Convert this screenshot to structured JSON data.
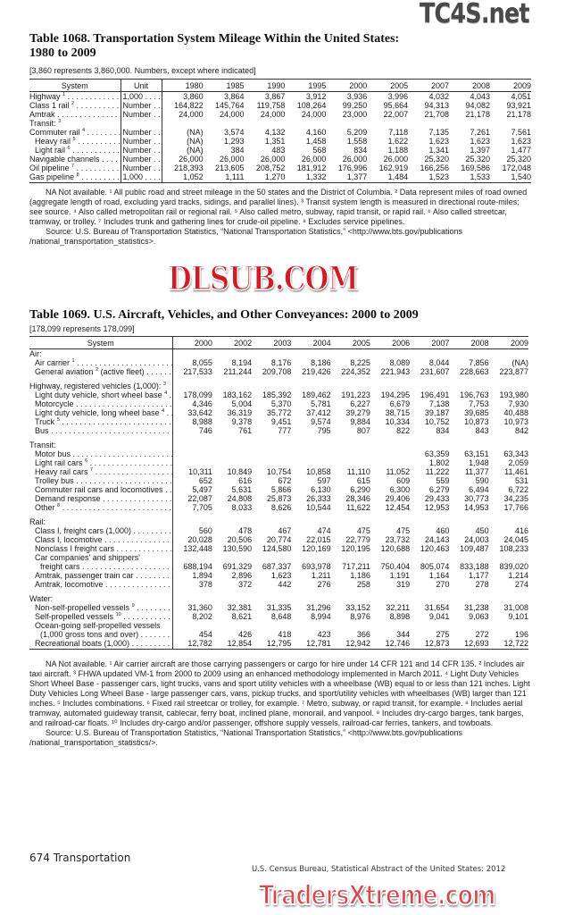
{
  "table1068": {
    "title_line1": "Table 1068. Transportation System Mileage Within the United States:",
    "title_line2": "1980 to 2009",
    "subtitle": "[3,860 represents 3,860,000. Numbers, except where indicated]",
    "headers": [
      "System",
      "Unit",
      "1980",
      "1985",
      "1990",
      "1995",
      "2000",
      "2005",
      "2007",
      "2008",
      "2009"
    ],
    "rows": [
      {
        "label": "Highway",
        "note": "1",
        "indent": 0,
        "unit": "1,000",
        "values": [
          "3,860",
          "3,864",
          "3,867",
          "3,912",
          "3,936",
          "3,996",
          "4,032",
          "4,043",
          "4,051"
        ]
      },
      {
        "label": "Class 1 rail",
        "note": "2",
        "indent": 0,
        "unit": "Number",
        "values": [
          "164,822",
          "145,764",
          "119,758",
          "108,264",
          "99,250",
          "95,664",
          "94,313",
          "94,082",
          "93,921"
        ]
      },
      {
        "label": "Amtrak",
        "note": "",
        "indent": 0,
        "unit": "Number",
        "values": [
          "24,000",
          "24,000",
          "24,000",
          "24,000",
          "23,000",
          "22,007",
          "21,708",
          "21,178",
          "21,178"
        ]
      },
      {
        "label": "Transit:",
        "note": "3",
        "indent": 0,
        "unit": "",
        "values": [],
        "heading": true
      },
      {
        "label": "Commuter rail",
        "note": "4",
        "indent": 0,
        "unit": "Number",
        "values": [
          "(NA)",
          "3,574",
          "4,132",
          "4,160",
          "5,209",
          "7,118",
          "7,135",
          "7,261",
          "7,561"
        ]
      },
      {
        "label": "Heavy rail",
        "note": "5",
        "indent": 1,
        "unit": "Number",
        "values": [
          "(NA)",
          "1,293",
          "1,351",
          "1,458",
          "1,558",
          "1,622",
          "1,623",
          "1,623",
          "1,623"
        ]
      },
      {
        "label": "Light rail",
        "note": "6",
        "indent": 1,
        "unit": "Number",
        "values": [
          "(NA)",
          "384",
          "483",
          "568",
          "834",
          "1,188",
          "1,341",
          "1,397",
          "1,477"
        ]
      },
      {
        "label": "Navigable channels",
        "note": "",
        "indent": 0,
        "unit": "Number",
        "values": [
          "26,000",
          "26,000",
          "26,000",
          "26,000",
          "26,000",
          "26,000",
          "25,320",
          "25,320",
          "25,320"
        ]
      },
      {
        "label": "Oil pipeline",
        "note": "7",
        "indent": 0,
        "unit": "Number",
        "values": [
          "218,393",
          "213,605",
          "208,752",
          "181,912",
          "176,996",
          "162,919",
          "166,256",
          "169,586",
          "172,048"
        ]
      },
      {
        "label": "Gas pipeline",
        "note": "8",
        "indent": 0,
        "unit": "1,000",
        "values": [
          "1,052",
          "1,111",
          "1,270",
          "1,332",
          "1,377",
          "1,484",
          "1,523",
          "1,533",
          "1,540"
        ]
      }
    ],
    "notes": "NA Not available. ¹ All public road and street mileage in the 50 states and the District of Columbia. ² Data represent miles of road owned (aggregate length of road, excluding yard tracks, sidings, and parallel lines). ³ Transit system length is measured in directional route-miles; see source. ⁴ Also called metropolitan rail or regional rail. ⁵ Also called metro, subway, rapid transit, or rapid rail. ⁶ Also called streetcar, tramway, or trolley. ⁷ Includes trunk and gathering lines for crude-oil pipeline. ⁸ Excludes service pipelines.",
    "source": "Source: U.S. Bureau of Transportation Statistics, “National Transportation Statistics,” <http://www.bts.gov/publications /national_transportation_statistics>."
  },
  "table1069": {
    "title": "Table 1069. U.S. Aircraft, Vehicles, and Other Conveyances: 2000 to 2009",
    "subtitle": "[178,099 represents 178,099]",
    "headers": [
      "System",
      "2000",
      "2002",
      "2003",
      "2004",
      "2005",
      "2006",
      "2007",
      "2008",
      "2009"
    ],
    "rows": [
      {
        "label": "Air:",
        "note": "",
        "indent": 0,
        "values": [],
        "heading": true
      },
      {
        "label": "Air carrier",
        "note": "1",
        "indent": 1,
        "values": [
          "8,055",
          "8,194",
          "8,176",
          "8,186",
          "8,225",
          "8,089",
          "8,044",
          "7,856",
          "(NA)"
        ]
      },
      {
        "label": "General aviation",
        "note": "2",
        "suffix": " (active fleet)",
        "indent": 1,
        "values": [
          "217,533",
          "211,244",
          "209,708",
          "219,426",
          "224,352",
          "221,943",
          "231,607",
          "228,663",
          "223,877"
        ]
      },
      {
        "gap": true
      },
      {
        "label": "Highway, registered vehicles (1,000):",
        "note": "3",
        "indent": 0,
        "values": [],
        "heading": true
      },
      {
        "label": "Light duty vehicle, short wheel base",
        "note": "4",
        "indent": 1,
        "values": [
          "178,099",
          "183,162",
          "185,392",
          "189,462",
          "191,223",
          "194,295",
          "196,491",
          "196,763",
          "193,980"
        ]
      },
      {
        "label": "Motorcycle",
        "note": "",
        "indent": 1,
        "values": [
          "4,346",
          "5,004",
          "5,370",
          "5,781",
          "6,227",
          "6,679",
          "7,138",
          "7,753",
          "7,930"
        ]
      },
      {
        "label": "Light duty vehicle, long wheel base",
        "note": "4",
        "indent": 1,
        "values": [
          "33,642",
          "36,319",
          "35,772",
          "37,412",
          "39,279",
          "38,715",
          "39,187",
          "39,685",
          "40,488"
        ]
      },
      {
        "label": "Truck",
        "note": "5",
        "indent": 1,
        "values": [
          "8,988",
          "9,378",
          "9,451",
          "9,574",
          "9,884",
          "10,334",
          "10,752",
          "10,873",
          "10,973"
        ]
      },
      {
        "label": "Bus",
        "note": "",
        "indent": 1,
        "values": [
          "746",
          "761",
          "777",
          "795",
          "807",
          "822",
          "834",
          "843",
          "842"
        ]
      },
      {
        "gap": true
      },
      {
        "label": "Transit:",
        "note": "",
        "indent": 0,
        "values": [],
        "heading": true
      },
      {
        "label": "Motor bus",
        "note": "",
        "indent": 1,
        "values": [
          "",
          "",
          "",
          "",
          "",
          "",
          "63,359",
          "63,151",
          "63,343"
        ]
      },
      {
        "label": "Light rail cars",
        "note": "6",
        "indent": 1,
        "values": [
          "",
          "",
          "",
          "",
          "",
          "",
          "1,802",
          "1,948",
          "2,059"
        ]
      },
      {
        "label": "Heavy rail cars",
        "note": "7",
        "indent": 1,
        "values": [
          "10,311",
          "10,849",
          "10,754",
          "10,858",
          "11,110",
          "11,052",
          "11,222",
          "11,377",
          "11,461"
        ]
      },
      {
        "label": "Trolley bus",
        "note": "",
        "indent": 1,
        "values": [
          "652",
          "616",
          "672",
          "597",
          "615",
          "609",
          "559",
          "590",
          "531"
        ]
      },
      {
        "label": "Commuter rail cars and locomotives",
        "note": "",
        "indent": 1,
        "values": [
          "5,497",
          "5,631",
          "5,866",
          "6,130",
          "6,290",
          "6,300",
          "6,279",
          "6,494",
          "6,722"
        ]
      },
      {
        "label": "Demand response",
        "note": "",
        "indent": 1,
        "values": [
          "22,087",
          "24,808",
          "25,873",
          "26,333",
          "28,346",
          "29,406",
          "29,433",
          "30,773",
          "34,235"
        ]
      },
      {
        "label": "Other",
        "note": "8",
        "indent": 1,
        "values": [
          "7,705",
          "8,033",
          "8,626",
          "10,544",
          "11,622",
          "12,454",
          "12,953",
          "14,953",
          "17,766"
        ]
      },
      {
        "gap": true
      },
      {
        "label": "Rail:",
        "note": "",
        "indent": 0,
        "values": [],
        "heading": true
      },
      {
        "label": "Class I, freight cars (1,000)",
        "note": "",
        "indent": 1,
        "values": [
          "560",
          "478",
          "467",
          "474",
          "475",
          "475",
          "460",
          "450",
          "416"
        ]
      },
      {
        "label": "Class I, locomotive",
        "note": "",
        "indent": 1,
        "values": [
          "20,028",
          "20,506",
          "20,774",
          "22,015",
          "22,779",
          "23,732",
          "24,143",
          "24,003",
          "24,045"
        ]
      },
      {
        "label": "Nonclass I freight cars",
        "note": "",
        "indent": 1,
        "values": [
          "132,448",
          "130,590",
          "124,580",
          "120,169",
          "120,195",
          "120,688",
          "120,463",
          "109,487",
          "108,233"
        ]
      },
      {
        "label": "Car companies' and shippers'",
        "note": "",
        "indent": 1,
        "values": [],
        "heading": true
      },
      {
        "label": "freight cars",
        "note": "",
        "indent": 2,
        "values": [
          "688,194",
          "691,329",
          "687,337",
          "693,978",
          "717,211",
          "750,404",
          "805,074",
          "833,188",
          "839,020"
        ]
      },
      {
        "label": "Amtrak, passenger train car",
        "note": "",
        "indent": 1,
        "values": [
          "1,894",
          "2,896",
          "1,623",
          "1,211",
          "1,186",
          "1,191",
          "1,164",
          "1,177",
          "1,214"
        ]
      },
      {
        "label": "Amtrak, locomotive",
        "note": "",
        "indent": 1,
        "values": [
          "378",
          "372",
          "442",
          "276",
          "258",
          "319",
          "270",
          "278",
          "274"
        ]
      },
      {
        "gap": true
      },
      {
        "label": "Water:",
        "note": "",
        "indent": 0,
        "values": [],
        "heading": true
      },
      {
        "label": "Non-self-propelled vessels",
        "note": "9",
        "indent": 1,
        "values": [
          "31,360",
          "32,381",
          "31,335",
          "31,296",
          "33,152",
          "32,211",
          "31,654",
          "31,238",
          "31,008"
        ]
      },
      {
        "label": "Self-propelled vessels",
        "note": "10",
        "indent": 1,
        "values": [
          "8,202",
          "8,621",
          "8,648",
          "8,994",
          "8,976",
          "8,898",
          "9,041",
          "9,063",
          "9,101"
        ]
      },
      {
        "label": "Ocean-going self-propelled vessels",
        "note": "",
        "indent": 1,
        "values": [],
        "heading": true
      },
      {
        "label": "(1,000 gross tons and over)",
        "note": "",
        "indent": 2,
        "values": [
          "454",
          "426",
          "418",
          "423",
          "366",
          "344",
          "275",
          "272",
          "196"
        ]
      },
      {
        "label": "Recreational boats (1,000)",
        "note": "",
        "indent": 1,
        "values": [
          "12,782",
          "12,854",
          "12,795",
          "12,781",
          "12,942",
          "12,746",
          "12,873",
          "12,693",
          "12,722"
        ]
      }
    ],
    "notes": "NA Not available. ¹ Air carrier aircraft are those carrying passengers or cargo for hire under 14 CFR 121 and 14 CFR 135. ² Includes air taxi aircraft. ³ FHWA updated VM-1 from 2000 to 2009 using an enhanced methodology implemented in March 2011. ⁴ Light Duty Vehicles Short Wheel Base - passenger cars, light trucks, vans and sport utility vehicles with a wheelbase (WB) equal to or less than 121 inches. Light Duty Vehicles Long Wheel Base - large passenger cars, vans, pickup trucks, and sport/utility vehicles with wheelbases (WB) larger than 121 inches. ⁵ Includes combinations. ⁶ Fixed rail streetcar or trolley, for example. ⁷ Metro, subway, or rapid transit, for example. ⁸ Includes aerial tramway, automated guideway transit, cablecar, ferry boat, inclined plane, monorail, and vanpool. ⁹ Includes dry-cargo barges, tank barges, and railroad-car floats. ¹⁰ Includes dry-cargo and/or passenger, offshore supply vessels, railroad-car ferries, tankers, and towboats.",
    "source": "Source: U.S. Bureau of Transportation Statistics, “National Transportation Statistics,” <http://www.bts.gov/publications /national_transportation_statistics/>."
  },
  "footer": {
    "page": "674  Transportation",
    "publication": "U.S. Census Bureau, Statistical Abstract of the United States: 2012"
  },
  "watermarks": [
    "TC4S.net",
    "DLSUB.COM",
    "TradersXtreme.com"
  ]
}
